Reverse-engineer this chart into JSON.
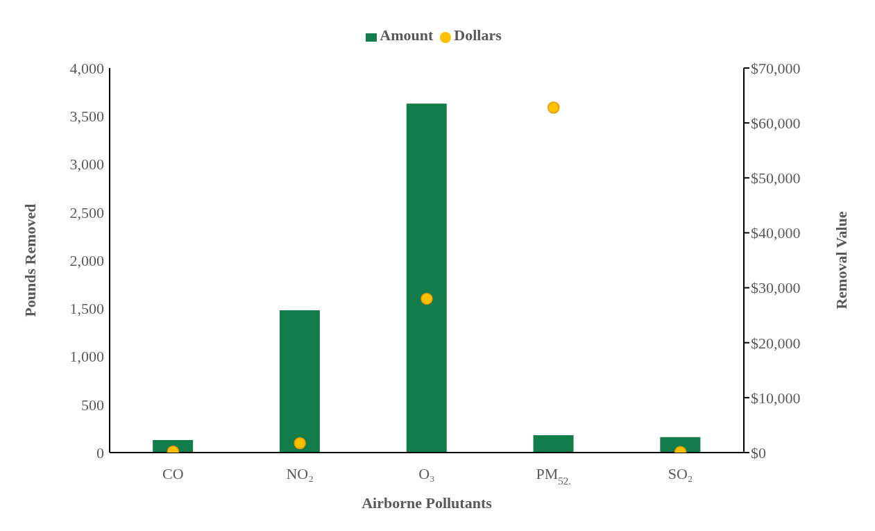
{
  "chart_data": {
    "type": "bar",
    "xlabel": "Airborne Pollutants",
    "ylabel": "Pounds Removed",
    "y2label": "Removal Value",
    "categories": [
      "CO",
      "NO₂",
      "O₃",
      "PM$_{52.}$",
      "SO₂"
    ],
    "series": [
      {
        "name": "Amount",
        "color": "#127d4a",
        "values": [
          130,
          1480,
          3630,
          180,
          160
        ]
      },
      {
        "name": "Dollars",
        "type": "scatter",
        "axis": "y2",
        "color": "#ffc000",
        "marker": "circle",
        "values": [
          200,
          1700,
          28000,
          62800,
          100
        ]
      }
    ],
    "ylim": [
      0,
      4000
    ],
    "yticks": [
      {
        "value": 0,
        "label": "0"
      },
      {
        "value": 500,
        "label": "500"
      },
      {
        "value": 1000,
        "label": "1,000"
      },
      {
        "value": 1500,
        "label": "1,500"
      },
      {
        "value": 2000,
        "label": "2,000"
      },
      {
        "value": 2500,
        "label": "2,500"
      },
      {
        "value": 3000,
        "label": "3,000"
      },
      {
        "value": 3500,
        "label": "3,500"
      },
      {
        "value": 4000,
        "label": "4,000"
      }
    ],
    "y2lim": [
      0,
      70000
    ],
    "y2ticks": [
      {
        "value": 0,
        "label": "$0"
      },
      {
        "value": 10000,
        "label": "$10,000"
      },
      {
        "value": 20000,
        "label": "$20,000"
      },
      {
        "value": 30000,
        "label": "$30,000"
      },
      {
        "value": 40000,
        "label": "$40,000"
      },
      {
        "value": 50000,
        "label": "$50,000"
      },
      {
        "value": 60000,
        "label": "$60,000"
      },
      {
        "value": 70000,
        "label": "$70,000"
      }
    ],
    "legend": "top",
    "grid": false
  }
}
